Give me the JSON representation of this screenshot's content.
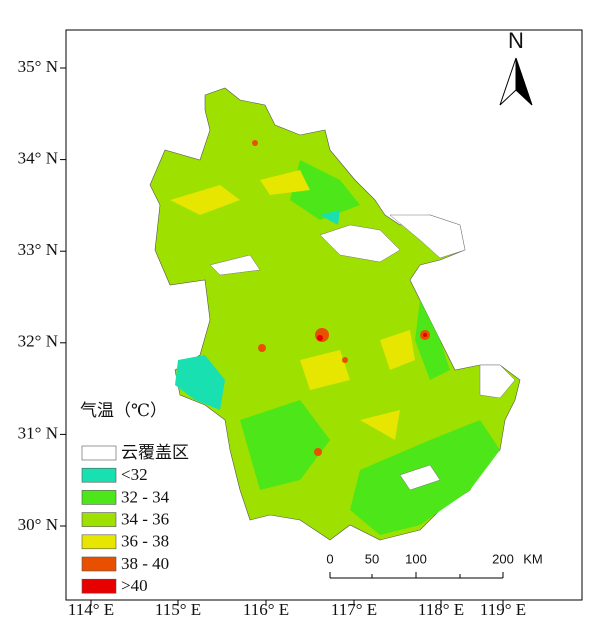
{
  "map": {
    "north": "N",
    "lat_labels": [
      "35° N",
      "34° N",
      "33° N",
      "32° N",
      "31° N",
      "30° N"
    ],
    "lon_labels": [
      "114° E",
      "115° E",
      "116° E",
      "117° E",
      "118° E",
      "119° E"
    ],
    "legend": {
      "title": "气温（℃）",
      "items": [
        {
          "label": "云覆盖区",
          "color": "#ffffff"
        },
        {
          "label": "<32",
          "color": "#19e0b0"
        },
        {
          "label": "32 - 34",
          "color": "#4ce619"
        },
        {
          "label": "34 - 36",
          "color": "#9ee000"
        },
        {
          "label": "36 - 38",
          "color": "#e6e600"
        },
        {
          "label": "38 - 40",
          "color": "#e85000"
        },
        {
          "label": ">40",
          "color": "#e60000"
        }
      ]
    },
    "scale": {
      "labels": [
        "0",
        "50",
        "100",
        "200"
      ],
      "unit": "KM"
    }
  }
}
